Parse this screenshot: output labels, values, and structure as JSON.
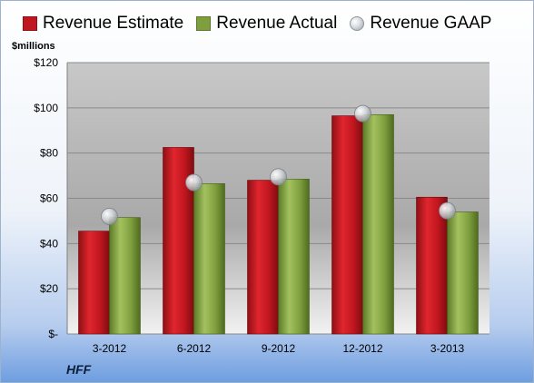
{
  "company": "HFF",
  "unit_label": "$millions",
  "colors": {
    "estimate": "#c0161f",
    "actual": "#7f9f3e",
    "gaap": "#b8bcc2"
  },
  "chart_data": {
    "type": "bar",
    "categories": [
      "3-2012",
      "6-2012",
      "9-2012",
      "12-2012",
      "3-2013"
    ],
    "series": [
      {
        "name": "Revenue Estimate",
        "type": "bar",
        "values": [
          45.5,
          82.5,
          68,
          96.5,
          60.5
        ]
      },
      {
        "name": "Revenue Actual",
        "type": "bar",
        "values": [
          51.5,
          66.5,
          68.5,
          97,
          54
        ]
      },
      {
        "name": "Revenue GAAP",
        "type": "scatter",
        "values": [
          52,
          67,
          69.5,
          97.5,
          54.5
        ]
      }
    ],
    "ylim": [
      0,
      120
    ],
    "yticks": [
      0,
      20,
      40,
      60,
      80,
      100,
      120
    ],
    "ytick_labels": [
      "$-",
      "$20",
      "$40",
      "$60",
      "$80",
      "$100",
      "$120"
    ],
    "grid": true,
    "legend": "top"
  }
}
